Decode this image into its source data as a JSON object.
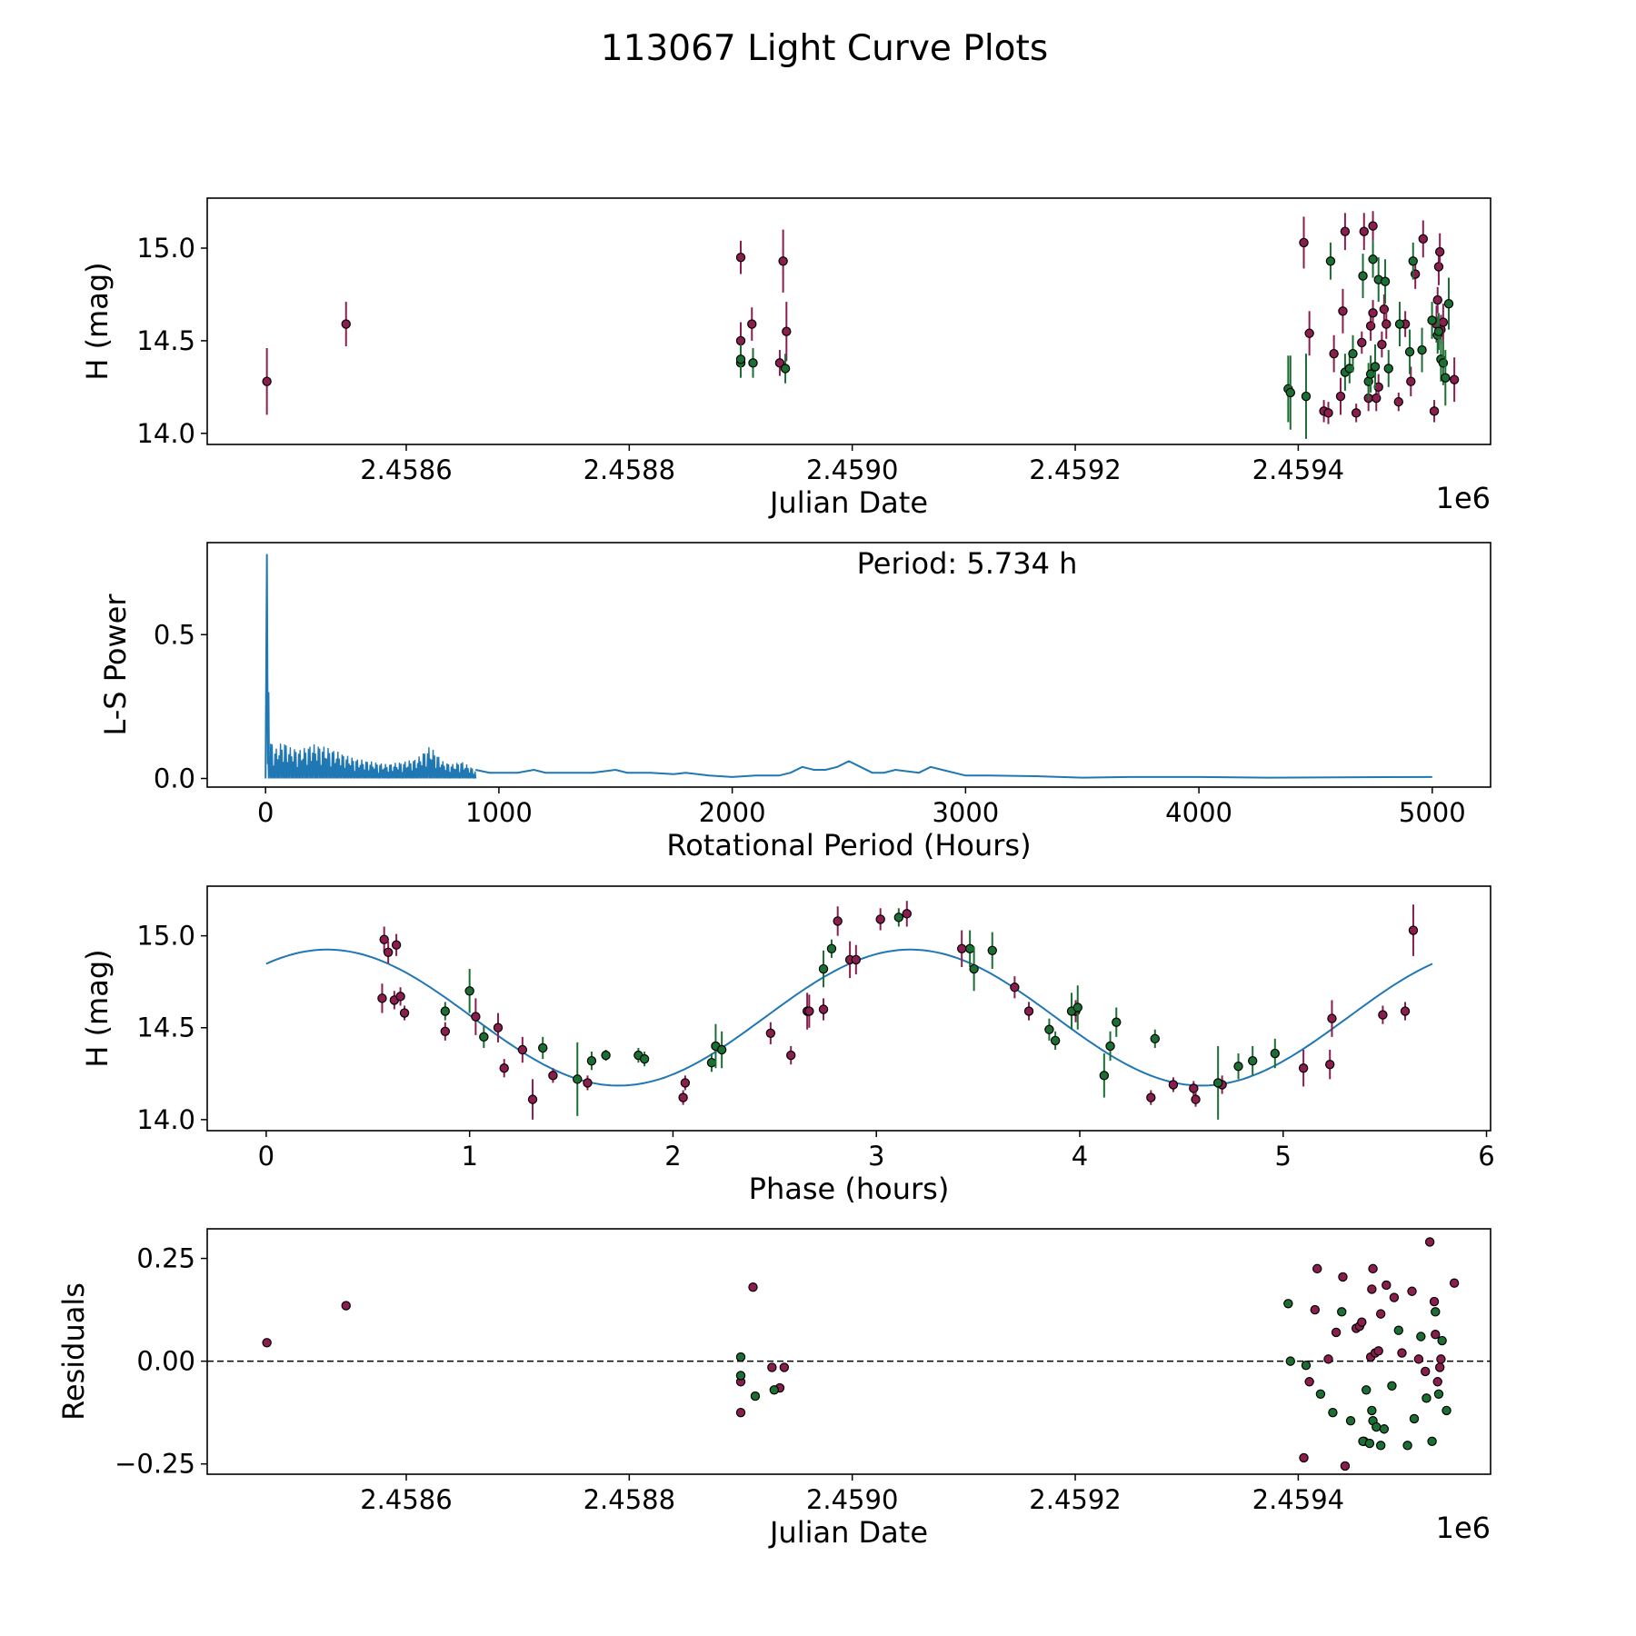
{
  "figure": {
    "title": "113067 Light Curve Plots"
  },
  "colors": {
    "red": "#8b1e4f",
    "green": "#1b6f33",
    "fit": "#1f77b4",
    "edge": "#000000"
  },
  "chart_data": [
    {
      "type": "scatter",
      "panel": "timeseries",
      "title": "",
      "xlabel": "Julian Date",
      "ylabel": "H (mag)",
      "offset_label": "1e6",
      "xlim": [
        2458421.5,
        2459572.5
      ],
      "ylim": [
        13.94,
        15.27
      ],
      "xticks": [
        2458600,
        2458800,
        2459000,
        2459200,
        2459400
      ],
      "xtick_labels": [
        "2.4586",
        "2.4588",
        "2.4590",
        "2.4592",
        "2.4594"
      ],
      "yticks": [
        14.0,
        14.5,
        15.0
      ],
      "ytick_labels": [
        "14.0",
        "14.5",
        "15.0"
      ],
      "series": [
        {
          "name": "red",
          "color_key": "red",
          "x": [
            2458475,
            2458546,
            2458900,
            2458900,
            2458910,
            2458935,
            2458938,
            2458941,
            2459405,
            2459410,
            2459423,
            2459427,
            2459432,
            2459438,
            2459440,
            2459442,
            2459452,
            2459457,
            2459459,
            2459463,
            2459465,
            2459467,
            2459467,
            2459470,
            2459472,
            2459475,
            2459477,
            2459479,
            2459490,
            2459496,
            2459501,
            2459505,
            2459512,
            2459522,
            2459524,
            2459525,
            2459526,
            2459527,
            2459528,
            2459530,
            2459540
          ],
          "y": [
            14.28,
            14.59,
            14.95,
            14.5,
            14.59,
            14.38,
            14.93,
            14.55,
            15.03,
            14.54,
            14.12,
            14.11,
            14.43,
            14.2,
            14.66,
            15.09,
            14.11,
            14.49,
            15.09,
            14.19,
            14.58,
            15.12,
            14.65,
            14.19,
            14.25,
            14.48,
            14.67,
            14.59,
            14.17,
            14.59,
            14.28,
            14.86,
            15.05,
            14.12,
            14.59,
            14.72,
            14.9,
            14.98,
            14.56,
            14.6,
            14.29
          ],
          "err": [
            0.18,
            0.12,
            0.09,
            0.1,
            0.09,
            0.07,
            0.17,
            0.16,
            0.14,
            0.12,
            0.06,
            0.06,
            0.1,
            0.1,
            0.12,
            0.1,
            0.05,
            0.06,
            0.1,
            0.07,
            0.08,
            0.08,
            0.07,
            0.07,
            0.07,
            0.07,
            0.08,
            0.08,
            0.05,
            0.07,
            0.08,
            0.08,
            0.1,
            0.06,
            0.1,
            0.07,
            0.1,
            0.1,
            0.08,
            0.1,
            0.12
          ]
        },
        {
          "name": "green",
          "color_key": "green",
          "x": [
            2458900,
            2458900,
            2458911,
            2458940,
            2459391,
            2459393,
            2459407,
            2459429,
            2459442,
            2459446,
            2459449,
            2459458,
            2459463,
            2459465,
            2459467,
            2459469,
            2459472,
            2459478,
            2459481,
            2459491,
            2459500,
            2459503,
            2459511,
            2459520,
            2459525,
            2459526,
            2459528,
            2459530,
            2459532,
            2459535
          ],
          "y": [
            14.38,
            14.4,
            14.38,
            14.35,
            14.24,
            14.22,
            14.2,
            14.93,
            14.33,
            14.35,
            14.43,
            14.85,
            14.28,
            14.32,
            14.94,
            14.36,
            14.83,
            14.82,
            14.35,
            14.59,
            14.44,
            14.93,
            14.45,
            14.61,
            14.53,
            14.55,
            14.4,
            14.38,
            14.3,
            14.7
          ],
          "err": [
            0.08,
            0.08,
            0.08,
            0.08,
            0.18,
            0.2,
            0.23,
            0.1,
            0.1,
            0.08,
            0.1,
            0.12,
            0.1,
            0.1,
            0.1,
            0.12,
            0.12,
            0.12,
            0.1,
            0.12,
            0.12,
            0.1,
            0.12,
            0.1,
            0.1,
            0.1,
            0.12,
            0.12,
            0.15,
            0.14
          ]
        }
      ]
    },
    {
      "type": "line",
      "panel": "periodogram",
      "xlabel": "Rotational Period (Hours)",
      "ylabel": "L-S Power",
      "annotation": "Period: 5.734 h",
      "xlim": [
        -250,
        5250
      ],
      "ylim": [
        -0.03,
        0.82
      ],
      "xticks": [
        0,
        1000,
        2000,
        3000,
        4000,
        5000
      ],
      "xtick_labels": [
        "0",
        "1000",
        "2000",
        "3000",
        "4000",
        "5000"
      ],
      "yticks": [
        0.0,
        0.5
      ],
      "ytick_labels": [
        "0.0",
        "0.5"
      ],
      "peak": {
        "x": 5.734,
        "y": 0.78
      },
      "curve": {
        "x": [
          6,
          10,
          20,
          30,
          40,
          60,
          80,
          100,
          150,
          200,
          260,
          320,
          380,
          450,
          520,
          600,
          650,
          700,
          720,
          760,
          800,
          840,
          900,
          960,
          1000,
          1080,
          1150,
          1200,
          1280,
          1400,
          1500,
          1550,
          1650,
          1750,
          1800,
          1900,
          2000,
          2100,
          2200,
          2250,
          2300,
          2350,
          2400,
          2450,
          2500,
          2550,
          2600,
          2650,
          2700,
          2800,
          2850,
          2900,
          3000,
          3100,
          3300,
          3500,
          3700,
          4000,
          4300,
          4600,
          5000
        ],
        "y": [
          0.24,
          0.16,
          0.12,
          0.14,
          0.1,
          0.12,
          0.13,
          0.11,
          0.1,
          0.12,
          0.11,
          0.09,
          0.07,
          0.06,
          0.05,
          0.06,
          0.07,
          0.11,
          0.1,
          0.06,
          0.05,
          0.06,
          0.03,
          0.02,
          0.02,
          0.02,
          0.03,
          0.02,
          0.02,
          0.02,
          0.03,
          0.02,
          0.02,
          0.015,
          0.02,
          0.01,
          0.005,
          0.01,
          0.01,
          0.02,
          0.04,
          0.03,
          0.03,
          0.04,
          0.06,
          0.04,
          0.02,
          0.02,
          0.03,
          0.02,
          0.04,
          0.03,
          0.01,
          0.01,
          0.008,
          0.003,
          0.005,
          0.005,
          0.003,
          0.004,
          0.005
        ],
        "noise_below": 900
      }
    },
    {
      "type": "scatter",
      "panel": "phase",
      "xlabel": "Phase (hours)",
      "ylabel": "H (mag)",
      "xlim": [
        -0.29,
        6.02
      ],
      "ylim": [
        13.94,
        15.27
      ],
      "xticks": [
        0,
        1,
        2,
        3,
        4,
        5,
        6
      ],
      "xtick_labels": [
        "0",
        "1",
        "2",
        "3",
        "4",
        "5",
        "6"
      ],
      "yticks": [
        14.0,
        14.5,
        15.0
      ],
      "ytick_labels": [
        "14.0",
        "14.5",
        "15.0"
      ],
      "model": {
        "mean": 14.555,
        "amplitude": 0.37,
        "period": 2.867,
        "peak_phase": 0.3,
        "x_max": 5.734
      },
      "series": [
        {
          "name": "red",
          "color_key": "red",
          "x": [
            0.57,
            0.58,
            0.6,
            0.63,
            0.64,
            0.66,
            0.68,
            0.88,
            1.03,
            1.14,
            1.17,
            1.26,
            1.31,
            1.41,
            1.58,
            2.05,
            2.06,
            2.48,
            2.58,
            2.66,
            2.67,
            2.74,
            2.81,
            2.87,
            2.9,
            3.02,
            3.15,
            3.42,
            3.68,
            3.75,
            3.98,
            4.35,
            4.46,
            4.56,
            4.57,
            4.7,
            5.1,
            5.23,
            5.24,
            5.49,
            5.6,
            5.64
          ],
          "y": [
            14.66,
            14.98,
            14.91,
            14.65,
            14.95,
            14.67,
            14.58,
            14.48,
            14.56,
            14.5,
            14.28,
            14.38,
            14.11,
            14.24,
            14.2,
            14.12,
            14.2,
            14.47,
            14.35,
            14.59,
            14.59,
            14.6,
            15.08,
            14.87,
            14.87,
            15.09,
            15.12,
            14.93,
            14.72,
            14.59,
            14.59,
            14.12,
            14.19,
            14.17,
            14.11,
            14.19,
            14.28,
            14.3,
            14.55,
            14.57,
            14.59,
            15.03
          ],
          "err": [
            0.08,
            0.07,
            0.06,
            0.05,
            0.06,
            0.05,
            0.04,
            0.05,
            0.1,
            0.08,
            0.05,
            0.07,
            0.11,
            0.04,
            0.04,
            0.04,
            0.04,
            0.06,
            0.05,
            0.1,
            0.09,
            0.06,
            0.08,
            0.1,
            0.08,
            0.06,
            0.07,
            0.1,
            0.06,
            0.05,
            0.06,
            0.04,
            0.04,
            0.04,
            0.04,
            0.05,
            0.1,
            0.08,
            0.1,
            0.05,
            0.05,
            0.14
          ]
        },
        {
          "name": "green",
          "color_key": "green",
          "x": [
            0.88,
            1.0,
            1.07,
            1.36,
            1.53,
            1.6,
            1.67,
            1.83,
            1.86,
            2.19,
            2.21,
            2.24,
            2.74,
            2.78,
            3.11,
            3.46,
            3.48,
            3.57,
            3.85,
            3.88,
            3.96,
            3.99,
            4.12,
            4.15,
            4.18,
            4.37,
            4.68,
            4.78,
            4.85,
            4.96
          ],
          "y": [
            14.59,
            14.7,
            14.45,
            14.39,
            14.22,
            14.32,
            14.35,
            14.35,
            14.33,
            14.31,
            14.4,
            14.38,
            14.82,
            14.93,
            15.1,
            14.93,
            14.82,
            14.92,
            14.49,
            14.43,
            14.59,
            14.61,
            14.24,
            14.4,
            14.53,
            14.44,
            14.2,
            14.29,
            14.32,
            14.36
          ],
          "err": [
            0.05,
            0.12,
            0.06,
            0.06,
            0.2,
            0.05,
            0.03,
            0.04,
            0.04,
            0.05,
            0.12,
            0.1,
            0.1,
            0.05,
            0.05,
            0.1,
            0.12,
            0.1,
            0.06,
            0.05,
            0.1,
            0.12,
            0.12,
            0.08,
            0.08,
            0.05,
            0.2,
            0.07,
            0.08,
            0.08
          ]
        }
      ]
    },
    {
      "type": "scatter",
      "panel": "residuals",
      "xlabel": "Julian Date",
      "ylabel": "Residuals",
      "offset_label": "1e6",
      "xlim": [
        2458421.5,
        2459572.5
      ],
      "ylim": [
        -0.275,
        0.322
      ],
      "xticks": [
        2458600,
        2458800,
        2459000,
        2459200,
        2459400
      ],
      "xtick_labels": [
        "2.4586",
        "2.4588",
        "2.4590",
        "2.4592",
        "2.4594"
      ],
      "yticks": [
        -0.25,
        0.0,
        0.25
      ],
      "ytick_labels": [
        "−0.25",
        "0.00",
        "0.25"
      ],
      "reference_line": 0.0,
      "series": [
        {
          "name": "red",
          "color_key": "red",
          "x": [
            2458475,
            2458546,
            2458900,
            2458900,
            2458911,
            2458928,
            2458935,
            2458939,
            2459405,
            2459410,
            2459415,
            2459417,
            2459427,
            2459434,
            2459440,
            2459442,
            2459452,
            2459455,
            2459457,
            2459459,
            2459465,
            2459466,
            2459467,
            2459469,
            2459472,
            2459474,
            2459479,
            2459486,
            2459493,
            2459502,
            2459508,
            2459514,
            2459518,
            2459522,
            2459523,
            2459525,
            2459527,
            2459528,
            2459540
          ],
          "y": [
            0.045,
            0.135,
            -0.05,
            -0.125,
            0.18,
            -0.015,
            -0.065,
            -0.015,
            -0.235,
            -0.05,
            0.125,
            0.225,
            0.005,
            0.07,
            0.205,
            -0.255,
            0.08,
            0.085,
            0.095,
            -0.195,
            0.01,
            0.175,
            0.225,
            0.02,
            0.025,
            0.115,
            0.185,
            0.155,
            0.02,
            0.17,
            0.005,
            -0.025,
            0.29,
            0.145,
            0.065,
            -0.05,
            -0.015,
            0.005,
            0.19
          ],
          "err": []
        },
        {
          "name": "green",
          "color_key": "green",
          "x": [
            2458900,
            2458900,
            2458913,
            2458930,
            2459391,
            2459393,
            2459407,
            2459420,
            2459431,
            2459439,
            2459447,
            2459458,
            2459461,
            2459464,
            2459466,
            2459467,
            2459470,
            2459474,
            2459477,
            2459484,
            2459490,
            2459498,
            2459504,
            2459510,
            2459515,
            2459520,
            2459523,
            2459526,
            2459529,
            2459533
          ],
          "y": [
            0.01,
            -0.035,
            -0.085,
            -0.07,
            0.14,
            0.0,
            -0.01,
            -0.08,
            -0.125,
            0.12,
            -0.145,
            -0.195,
            -0.07,
            -0.2,
            -0.12,
            -0.145,
            -0.16,
            -0.205,
            -0.165,
            -0.06,
            0.075,
            -0.205,
            -0.14,
            0.06,
            -0.09,
            -0.195,
            0.12,
            -0.08,
            0.05,
            -0.12
          ],
          "err": []
        }
      ]
    }
  ]
}
